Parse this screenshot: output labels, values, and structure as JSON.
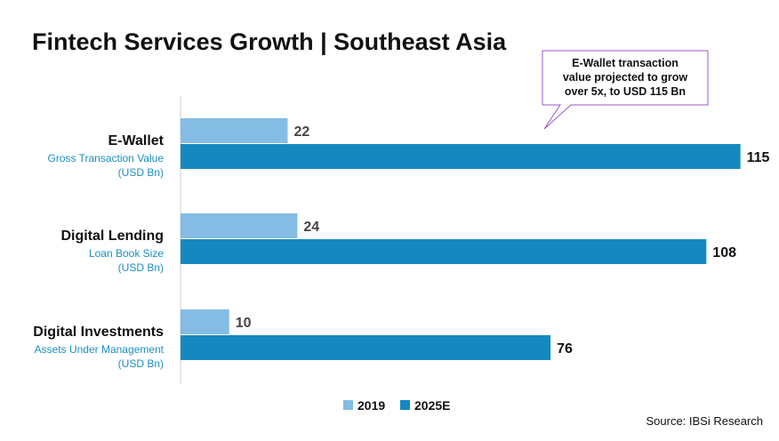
{
  "chart_data": {
    "type": "bar",
    "orientation": "horizontal",
    "title": "Fintech Services Growth | Southeast Asia",
    "categories": [
      {
        "name": "E-Wallet",
        "sub": [
          "Gross Transaction Value",
          "(USD Bn)"
        ]
      },
      {
        "name": "Digital Lending",
        "sub": [
          "Loan Book Size",
          "(USD Bn)"
        ]
      },
      {
        "name": "Digital Investments",
        "sub": [
          "Assets Under Management",
          "(USD Bn)"
        ]
      }
    ],
    "series": [
      {
        "name": "2019",
        "values": [
          22,
          24,
          10
        ],
        "color": "#85bce3"
      },
      {
        "name": "2025E",
        "values": [
          115,
          108,
          76
        ],
        "color": "#1589bf"
      }
    ],
    "xlim": [
      0,
      120
    ],
    "grid": false,
    "legend": "bottom-center",
    "annotation": [
      "E-Wallet transaction",
      "value projected to grow",
      "over 5x, to USD 115 Bn"
    ],
    "source": "Source: IBSi Research"
  },
  "colors": {
    "value_label_2019": "#444444",
    "value_label_2025": "#111111",
    "callout_border": "#9b59c8",
    "axis": "#cccccc"
  }
}
